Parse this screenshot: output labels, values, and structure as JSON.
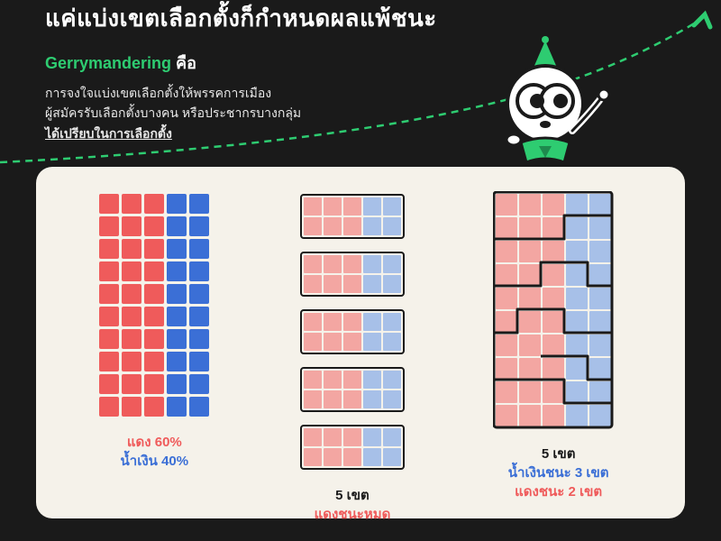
{
  "colors": {
    "bg": "#1a1a1a",
    "panel": "#f5f2ea",
    "green": "#2ecc71",
    "red": "#ef5b5b",
    "blue": "#3b6fd6",
    "red_faded": "#f3a6a2",
    "blue_faded": "#a7c0e8",
    "black": "#1a1a1a",
    "white": "#ffffff"
  },
  "header": {
    "title": "แค่แบ่งเขตเลือกตั้งก็กำหนดผลแพ้ชนะ",
    "subtitle_green": "Gerrymandering",
    "subtitle_white": " คือ",
    "desc_line1": "การจงใจแบ่งเขตเลือกตั้งให้พรรคการเมือง",
    "desc_line2": "ผู้สมัครรับเลือกตั้งบางคน หรือประชากรบางกลุ่ม",
    "desc_underlined": "ได้เปรียบในการเลือกตั้ง"
  },
  "chart1": {
    "type": "grid",
    "rows": 10,
    "cols": 5,
    "red_cols": 3,
    "blue_cols": 2,
    "caption_red": "แดง 60%",
    "caption_blue": "น้ำเงิน 40%"
  },
  "chart2": {
    "type": "districts_horizontal",
    "district_count": 5,
    "cells_per_district": {
      "rows": 2,
      "cols": 5
    },
    "red_cols": 3,
    "blue_cols": 2,
    "caption_black": "5 เขต",
    "caption_red": "แดงชนะหมด"
  },
  "chart3": {
    "type": "gerrymandered",
    "rows": 10,
    "cols": 5,
    "red_cols": 3,
    "blue_cols": 2,
    "caption_black": "5 เขต",
    "caption_blue": "น้ำเงินชนะ 3 เขต",
    "caption_red": "แดงชนะ 2 เขต"
  },
  "styling": {
    "cell_size_main": 22,
    "cell_gap_main": 3,
    "cell_size_district": 20,
    "district_border_width": 2.5,
    "panel_radius": 18,
    "title_fontsize": 26,
    "subtitle_fontsize": 18,
    "desc_fontsize": 14,
    "caption_fontsize": 15
  }
}
